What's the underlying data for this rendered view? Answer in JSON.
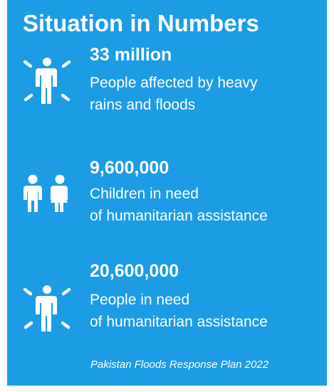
{
  "panel": {
    "title": "Situation in Numbers",
    "background_color": "#1c9ce4",
    "stats": [
      {
        "icon": "person-impact-icon",
        "value": "33 million",
        "desc_line1": "People affected by heavy",
        "desc_line2": "rains and floods"
      },
      {
        "icon": "children-icon",
        "value": "9,600,000",
        "desc_line1": "Children in need",
        "desc_line2": "of humanitarian assistance"
      },
      {
        "icon": "person-impact-icon",
        "value": "20,600,000",
        "desc_line1": "People in need",
        "desc_line2": "of humanitarian assistance"
      }
    ],
    "source": "Pakistan Floods Response Plan 2022"
  }
}
